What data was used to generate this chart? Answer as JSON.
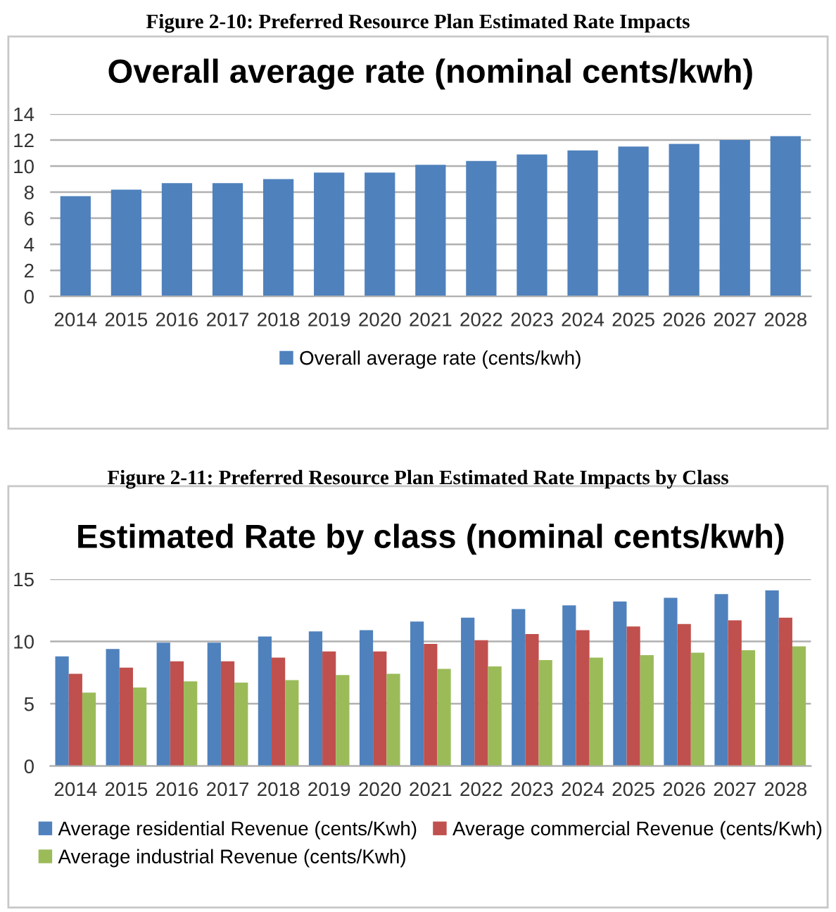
{
  "chart_data": [
    {
      "type": "bar",
      "title": "Overall average rate (nominal cents/kwh)",
      "annotations": [
        "Figure 2-10: Preferred Resource Plan Estimated Rate Impacts"
      ],
      "categories": [
        "2014",
        "2015",
        "2016",
        "2017",
        "2018",
        "2019",
        "2020",
        "2021",
        "2022",
        "2023",
        "2024",
        "2025",
        "2026",
        "2027",
        "2028"
      ],
      "series": [
        {
          "name": "Overall average rate (cents/kwh)",
          "color": "#4f81bd",
          "values": [
            7.7,
            8.2,
            8.7,
            8.7,
            9.0,
            9.5,
            9.5,
            10.1,
            10.4,
            10.9,
            11.2,
            11.5,
            11.7,
            12.0,
            12.3
          ]
        }
      ],
      "ylim": [
        0,
        14
      ],
      "yticks": [
        0,
        2,
        4,
        6,
        8,
        10,
        12,
        14
      ],
      "grid": "y",
      "legend": "bottom"
    },
    {
      "type": "bar",
      "title": "Estimated Rate by class (nominal cents/kwh)",
      "annotations": [
        "Figure 2-11: Preferred Resource Plan Estimated Rate Impacts by Class"
      ],
      "categories": [
        "2014",
        "2015",
        "2016",
        "2017",
        "2018",
        "2019",
        "2020",
        "2021",
        "2022",
        "2023",
        "2024",
        "2025",
        "2026",
        "2027",
        "2028"
      ],
      "series": [
        {
          "name": "Average residential Revenue (cents/Kwh)",
          "color": "#4f81bd",
          "values": [
            8.8,
            9.4,
            9.9,
            9.9,
            10.4,
            10.8,
            10.9,
            11.6,
            11.9,
            12.6,
            12.9,
            13.2,
            13.5,
            13.8,
            14.1
          ]
        },
        {
          "name": "Average commercial Revenue (cents/Kwh)",
          "color": "#c0504d",
          "values": [
            7.4,
            7.9,
            8.4,
            8.4,
            8.7,
            9.2,
            9.2,
            9.8,
            10.1,
            10.6,
            10.9,
            11.2,
            11.4,
            11.7,
            11.9
          ]
        },
        {
          "name": "Average industrial Revenue (cents/Kwh)",
          "color": "#9bbb59",
          "values": [
            5.9,
            6.3,
            6.8,
            6.7,
            6.9,
            7.3,
            7.4,
            7.8,
            8.0,
            8.5,
            8.7,
            8.9,
            9.1,
            9.3,
            9.6
          ]
        }
      ],
      "ylim": [
        0,
        15
      ],
      "yticks": [
        0,
        5,
        10,
        15
      ],
      "grid": "y",
      "legend": "bottom"
    }
  ]
}
